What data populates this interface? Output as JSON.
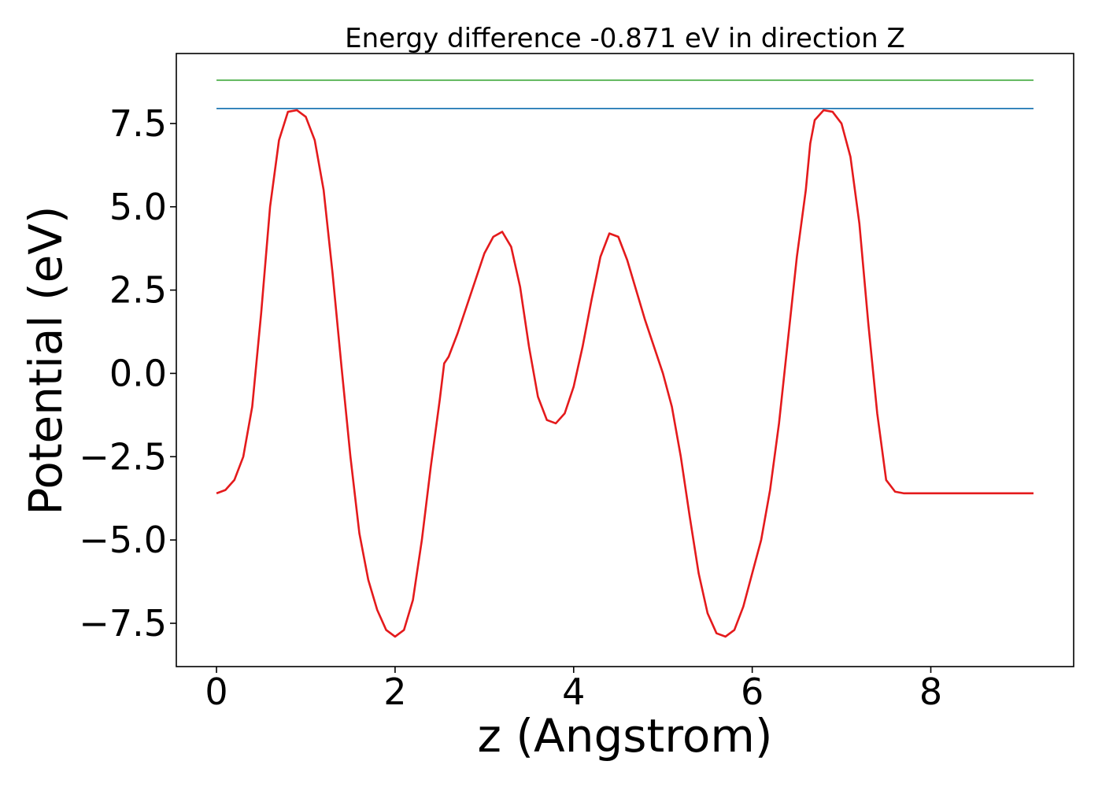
{
  "chart_data": {
    "type": "line",
    "title": "Energy difference -0.871 eV in direction Z",
    "xlabel": "z (Angstrom)",
    "ylabel": "Potential (eV)",
    "xlim": [
      -0.45,
      9.6
    ],
    "ylim": [
      -8.8,
      9.6
    ],
    "x_ticks": [
      0,
      2,
      4,
      6,
      8
    ],
    "x_tick_labels": [
      "0",
      "2",
      "4",
      "6",
      "8"
    ],
    "y_ticks": [
      7.5,
      5.0,
      2.5,
      0.0,
      -2.5,
      -5.0,
      -7.5
    ],
    "y_tick_labels": [
      "7.5",
      "5.0",
      "2.5",
      "0.0",
      "−2.5",
      "−5.0",
      "−7.5"
    ],
    "grid": false,
    "series": [
      {
        "color": "#e41a1c",
        "x": [
          0.0,
          0.1,
          0.2,
          0.3,
          0.4,
          0.5,
          0.6,
          0.7,
          0.8,
          0.9,
          1.0,
          1.1,
          1.2,
          1.3,
          1.4,
          1.5,
          1.6,
          1.7,
          1.8,
          1.9,
          2.0,
          2.1,
          2.2,
          2.3,
          2.4,
          2.5,
          2.55,
          2.6,
          2.7,
          2.8,
          2.9,
          3.0,
          3.1,
          3.2,
          3.3,
          3.4,
          3.5,
          3.6,
          3.7,
          3.8,
          3.9,
          4.0,
          4.1,
          4.2,
          4.3,
          4.4,
          4.5,
          4.6,
          4.7,
          4.8,
          4.9,
          5.0,
          5.1,
          5.2,
          5.3,
          5.4,
          5.5,
          5.6,
          5.7,
          5.8,
          5.9,
          6.0,
          6.1,
          6.2,
          6.3,
          6.4,
          6.5,
          6.6,
          6.65,
          6.7,
          6.8,
          6.9,
          7.0,
          7.1,
          7.2,
          7.3,
          7.4,
          7.5,
          7.6,
          7.7,
          7.8,
          7.9,
          8.0,
          8.1,
          8.2,
          8.3,
          8.4,
          8.5,
          8.6,
          8.7,
          8.8,
          8.9,
          9.0,
          9.1,
          9.15
        ],
        "y": [
          -3.6,
          -3.5,
          -3.2,
          -2.5,
          -1.0,
          1.8,
          5.0,
          7.0,
          7.85,
          7.9,
          7.7,
          7.0,
          5.5,
          3.0,
          0.2,
          -2.5,
          -4.8,
          -6.2,
          -7.1,
          -7.7,
          -7.9,
          -7.7,
          -6.8,
          -5.0,
          -2.8,
          -0.8,
          0.3,
          0.5,
          1.2,
          2.0,
          2.8,
          3.6,
          4.1,
          4.25,
          3.8,
          2.6,
          0.8,
          -0.7,
          -1.4,
          -1.5,
          -1.2,
          -0.4,
          0.8,
          2.2,
          3.5,
          4.2,
          4.1,
          3.4,
          2.5,
          1.6,
          0.8,
          0.0,
          -1.0,
          -2.5,
          -4.3,
          -6.0,
          -7.2,
          -7.8,
          -7.9,
          -7.7,
          -7.0,
          -6.0,
          -5.0,
          -3.5,
          -1.5,
          1.0,
          3.5,
          5.5,
          6.9,
          7.6,
          7.9,
          7.85,
          7.5,
          6.5,
          4.5,
          1.5,
          -1.2,
          -3.2,
          -3.55,
          -3.6,
          -3.6,
          -3.6,
          -3.6,
          -3.6,
          -3.6,
          -3.6,
          -3.6,
          -3.6,
          -3.6,
          -3.6,
          -3.6,
          -3.6,
          -3.6,
          -3.6,
          -3.6
        ]
      },
      {
        "color": "#1f77b4",
        "x": [
          0.0,
          9.15
        ],
        "y": [
          7.95,
          7.95
        ]
      },
      {
        "color": "#4daf4a",
        "x": [
          0.0,
          9.15
        ],
        "y": [
          8.8,
          8.8
        ]
      }
    ]
  }
}
